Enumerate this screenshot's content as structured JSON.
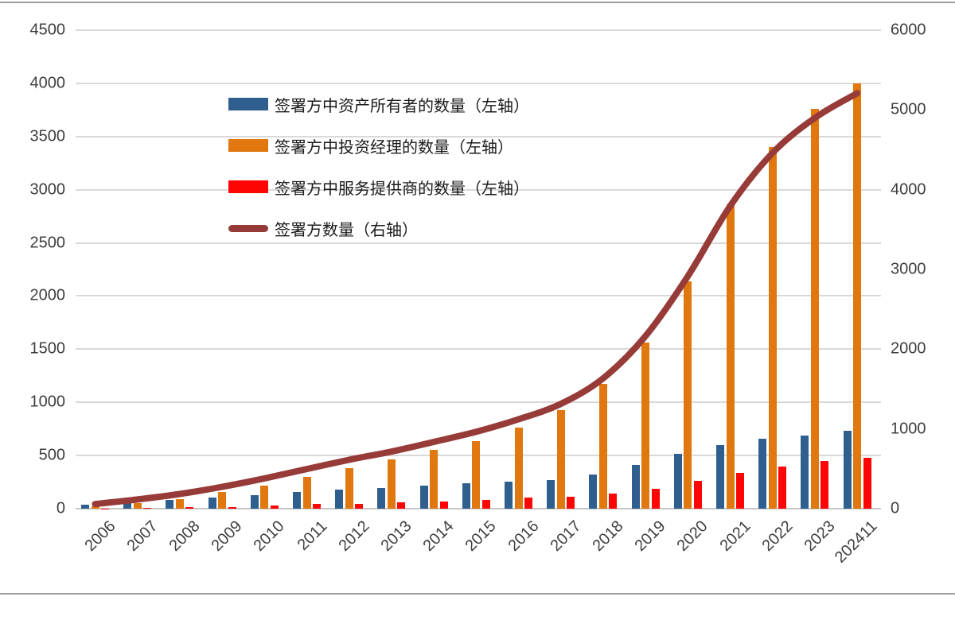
{
  "chart_data": {
    "type": "combo-bar-line",
    "title": "",
    "categories": [
      "2006",
      "2007",
      "2008",
      "2009",
      "2010",
      "2011",
      "2012",
      "2013",
      "2014",
      "2015",
      "2016",
      "2017",
      "2018",
      "2019",
      "2020",
      "2021",
      "2022",
      "2023",
      "202411"
    ],
    "series": [
      {
        "name": "签署方中资产所有者的数量（左轴）",
        "type": "bar",
        "axis": "left",
        "color": "#2e5f8f",
        "values": [
          35,
          57,
          82,
          102,
          130,
          155,
          180,
          192,
          215,
          242,
          257,
          270,
          325,
          410,
          515,
          595,
          660,
          690,
          730
        ]
      },
      {
        "name": "签署方中投资经理的数量（左轴）",
        "type": "bar",
        "axis": "left",
        "color": "#e0770f",
        "values": [
          20,
          52,
          90,
          157,
          220,
          300,
          385,
          467,
          552,
          637,
          762,
          930,
          1170,
          1565,
          2135,
          2860,
          3400,
          3760,
          4000
        ]
      },
      {
        "name": "签署方中服务提供商的数量（左轴）",
        "type": "bar",
        "axis": "left",
        "color": "#fe0505",
        "values": [
          3,
          7,
          12,
          15,
          30,
          42,
          48,
          57,
          70,
          85,
          102,
          115,
          140,
          190,
          265,
          340,
          400,
          450,
          480
        ]
      },
      {
        "name": "签署方数量（右轴）",
        "type": "line",
        "axis": "right",
        "color": "#973b38",
        "values": [
          58,
          116,
          184,
          274,
          380,
          497,
          613,
          716,
          837,
          964,
          1121,
          1315,
          1635,
          2165,
          2915,
          3795,
          4460,
          4900,
          5210
        ]
      }
    ],
    "left_axis": {
      "min": 0,
      "max": 4500,
      "step": 500,
      "tick_labels": [
        "0",
        "500",
        "1000",
        "1500",
        "2000",
        "2500",
        "3000",
        "3500",
        "4000",
        "4500"
      ]
    },
    "right_axis": {
      "min": 0,
      "max": 6000,
      "step": 1000,
      "tick_labels": [
        "0",
        "1000",
        "2000",
        "3000",
        "4000",
        "5000",
        "6000"
      ]
    },
    "grid": true,
    "legend_position": "inside-top-left",
    "colors": {
      "gridline": "#d9d9d9",
      "baseline": "#c6c6c6",
      "axis_text": "#3f3f3f",
      "legend_text": "#1a1a1a",
      "frame_line": "#9d9d9d",
      "background": "#ffffff"
    }
  }
}
